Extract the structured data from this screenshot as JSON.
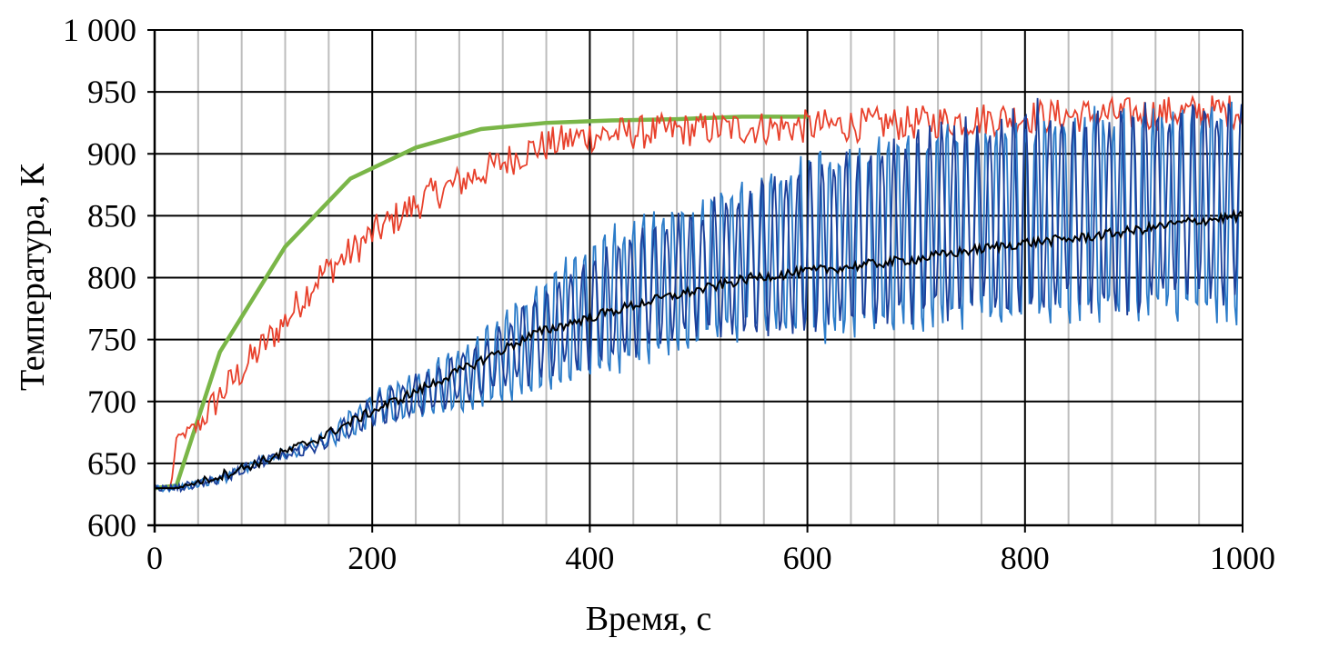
{
  "chart_data": {
    "type": "line",
    "title": "",
    "xlabel": "Время, с",
    "ylabel": "Температура, К",
    "xlim": [
      0,
      1000
    ],
    "ylim": [
      600,
      1000
    ],
    "x_ticks": [
      0,
      200,
      400,
      600,
      800,
      1000
    ],
    "x_tick_labels": [
      "0",
      "200",
      "400",
      "600",
      "800",
      "1000"
    ],
    "x_minor_step": 40,
    "y_ticks": [
      600,
      650,
      700,
      750,
      800,
      850,
      900,
      950,
      1000
    ],
    "y_tick_labels": [
      "600",
      "650",
      "700",
      "750",
      "800",
      "850",
      "900",
      "950",
      "1 000"
    ],
    "grid": true,
    "legend": "none",
    "series": [
      {
        "color": "#7ab648",
        "style": "thick",
        "x": [
          0,
          20,
          60,
          120,
          180,
          240,
          300,
          360,
          420,
          480,
          540,
          600
        ],
        "y": [
          630,
          632,
          740,
          825,
          880,
          905,
          920,
          925,
          927,
          928,
          930,
          930
        ]
      },
      {
        "color": "#e8412c",
        "style": "noisy",
        "x": [
          0,
          15,
          20,
          40,
          60,
          80,
          100,
          120,
          150,
          180,
          200,
          250,
          300,
          350,
          400,
          500,
          600,
          700,
          800,
          900,
          1000
        ],
        "y": [
          630,
          630,
          670,
          680,
          705,
          725,
          745,
          765,
          800,
          820,
          835,
          865,
          885,
          905,
          915,
          920,
          922,
          925,
          930,
          932,
          935
        ]
      },
      {
        "color": "#2c7cc9",
        "style": "oscillating",
        "x": [
          0,
          20,
          60,
          100,
          150,
          200,
          250,
          300,
          350,
          400,
          450,
          500,
          550,
          600,
          650,
          700,
          750,
          800,
          850,
          900,
          950,
          1000
        ],
        "y_min": [
          630,
          630,
          635,
          650,
          660,
          680,
          685,
          690,
          700,
          710,
          720,
          735,
          745,
          740,
          740,
          745,
          750,
          750,
          755,
          750,
          755,
          750
        ],
        "y_max": [
          630,
          630,
          640,
          655,
          670,
          710,
          730,
          760,
          800,
          840,
          860,
          875,
          890,
          910,
          920,
          930,
          935,
          945,
          945,
          950,
          950,
          950
        ]
      },
      {
        "color": "#1c3f99",
        "style": "oscillating",
        "x": [
          0,
          20,
          60,
          100,
          150,
          200,
          250,
          300,
          350,
          400,
          450,
          500,
          550,
          600,
          650,
          700,
          750,
          800,
          850,
          900,
          950,
          1000
        ],
        "y_min": [
          630,
          630,
          635,
          650,
          660,
          680,
          690,
          700,
          715,
          725,
          735,
          745,
          750,
          750,
          755,
          760,
          765,
          760,
          770,
          765,
          770,
          775
        ],
        "y_max": [
          630,
          630,
          640,
          655,
          668,
          705,
          725,
          750,
          790,
          820,
          845,
          860,
          880,
          900,
          915,
          925,
          935,
          945,
          945,
          945,
          950,
          950
        ]
      },
      {
        "color": "#000000",
        "style": "noisy",
        "x": [
          0,
          20,
          60,
          100,
          150,
          200,
          250,
          300,
          350,
          400,
          450,
          500,
          550,
          600,
          650,
          700,
          750,
          800,
          850,
          900,
          950,
          1000
        ],
        "y": [
          630,
          630,
          640,
          652,
          670,
          692,
          712,
          733,
          755,
          768,
          780,
          790,
          800,
          805,
          810,
          815,
          822,
          828,
          832,
          838,
          845,
          850
        ]
      }
    ]
  },
  "colors": {
    "major_grid": "#000000",
    "minor_grid": "#bdbdbd"
  }
}
